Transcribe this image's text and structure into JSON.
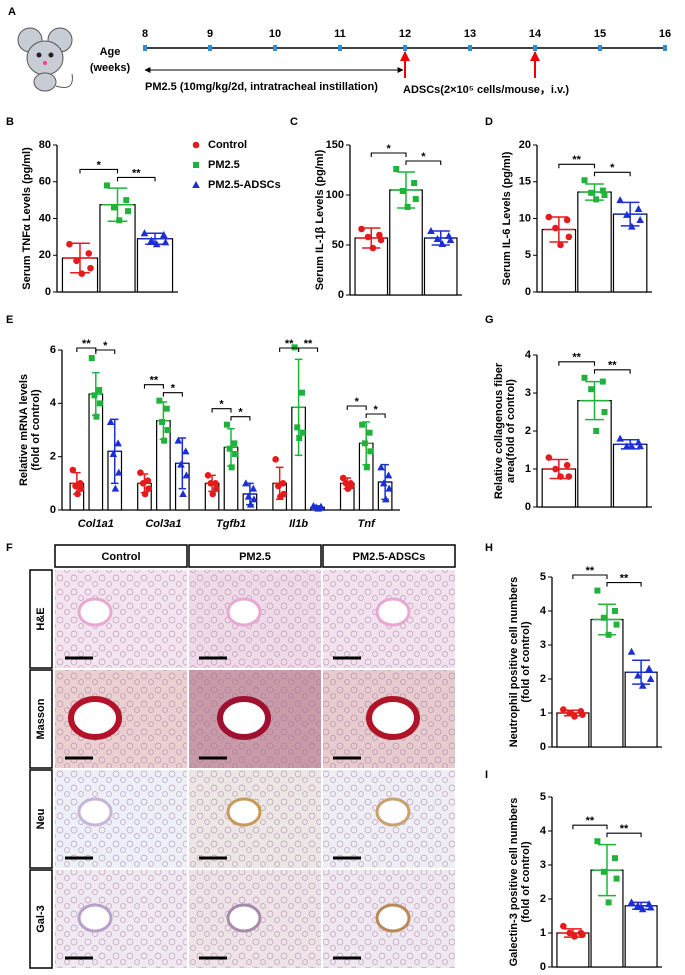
{
  "timeline": {
    "panel": "A",
    "label": [
      "Age",
      "(weeks)"
    ],
    "xlim": [
      8,
      16
    ],
    "xticks": [
      8,
      9,
      10,
      11,
      12,
      13,
      14,
      15,
      16
    ],
    "exposure": {
      "text": "PM2.5 (10mg/kg/2d, intratracheal instillation)",
      "range": [
        8,
        12
      ]
    },
    "treatment": {
      "text": "ADSCs(2×10⁵ cells/mouse，i.v.)",
      "weeks": [
        12,
        14
      ]
    }
  },
  "chart_data": [
    {
      "type": "bar",
      "panel": "B",
      "ylabel": [
        "Serum TNFα Levels (pg/ml)"
      ],
      "ylim": [
        0,
        80
      ],
      "yticks": [
        0,
        20,
        40,
        60,
        80
      ],
      "categories": [
        null
      ],
      "series": [
        {
          "name": "Control",
          "color": "#e41a1c",
          "marker": "circle",
          "values": [
            18.5
          ],
          "errors": [
            8
          ],
          "points": [
            [
              26,
              21,
              17,
              13,
              10
            ]
          ]
        },
        {
          "name": "PM2.5",
          "color": "#1fb33c",
          "marker": "square",
          "values": [
            47.5
          ],
          "errors": [
            9
          ],
          "points": [
            [
              58,
              50,
              46,
              44,
              39
            ]
          ]
        },
        {
          "name": "PM2.5-ADSCs",
          "color": "#1c2fd1",
          "marker": "triangle",
          "values": [
            29
          ],
          "errors": [
            3
          ],
          "points": [
            [
              32,
              31,
              28,
              27,
              26
            ]
          ]
        }
      ],
      "significance": [
        [
          "*",
          "**"
        ]
      ]
    },
    {
      "type": "bar",
      "panel": "C",
      "ylabel": [
        "Serum IL-1β Levels (pg/ml)"
      ],
      "ylim": [
        0,
        150
      ],
      "yticks": [
        0,
        50,
        100,
        150
      ],
      "categories": [
        null
      ],
      "series": [
        {
          "color": "#e41a1c",
          "marker": "circle",
          "values": [
            57
          ],
          "errors": [
            10
          ],
          "points": [
            [
              66,
              60,
              58,
              55,
              47
            ]
          ]
        },
        {
          "color": "#1fb33c",
          "marker": "square",
          "values": [
            105
          ],
          "errors": [
            18
          ],
          "points": [
            [
              126,
              112,
              104,
              96,
              88
            ]
          ]
        },
        {
          "color": "#1c2fd1",
          "marker": "triangle",
          "values": [
            57
          ],
          "errors": [
            7
          ],
          "points": [
            [
              64,
              59,
              56,
              55,
              51
            ]
          ]
        }
      ],
      "significance": [
        [
          "*",
          "*"
        ]
      ]
    },
    {
      "type": "bar",
      "panel": "D",
      "ylabel": [
        "Serum IL-6 Levels (pg/ml)"
      ],
      "ylim": [
        0,
        20
      ],
      "yticks": [
        0,
        5,
        10,
        15,
        20
      ],
      "categories": [
        null
      ],
      "series": [
        {
          "color": "#e41a1c",
          "marker": "circle",
          "values": [
            8.5
          ],
          "errors": [
            1.7
          ],
          "points": [
            [
              10.2,
              9.8,
              8.7,
              7.5,
              6.4
            ]
          ]
        },
        {
          "color": "#1fb33c",
          "marker": "square",
          "values": [
            13.6
          ],
          "errors": [
            1.1
          ],
          "points": [
            [
              15.2,
              13.8,
              13.5,
              13.2,
              12.6
            ]
          ]
        },
        {
          "color": "#1c2fd1",
          "marker": "triangle",
          "values": [
            10.6
          ],
          "errors": [
            1.6
          ],
          "points": [
            [
              12.5,
              11.3,
              10.5,
              9.8,
              8.9
            ]
          ]
        }
      ],
      "significance": [
        [
          "**",
          "*"
        ]
      ]
    },
    {
      "type": "bar",
      "panel": "E",
      "ylabel": [
        "Relative mRNA levels",
        "(fold of control)"
      ],
      "ylim": [
        0,
        6
      ],
      "yticks": [
        0,
        2,
        4,
        6
      ],
      "categories": [
        "Col1a1",
        "Col3a1",
        "Tgfb1",
        "Il1b",
        "Tnf"
      ],
      "series": [
        {
          "color": "#e41a1c",
          "marker": "circle",
          "values": [
            1,
            1,
            1,
            1,
            1
          ],
          "errors": [
            0.4,
            0.35,
            0.3,
            0.6,
            0.2
          ],
          "points": [
            [
              1.5,
              1.0,
              0.9,
              0.8,
              0.6
            ],
            [
              1.4,
              1.1,
              1.0,
              0.8,
              0.6
            ],
            [
              1.3,
              1.0,
              1.0,
              0.8,
              0.6
            ],
            [
              1.9,
              1.0,
              0.9,
              0.6,
              0.5
            ],
            [
              1.2,
              1.0,
              1.0,
              0.9,
              0.8
            ]
          ]
        },
        {
          "color": "#1fb33c",
          "marker": "square",
          "values": [
            4.35,
            3.35,
            2.35,
            3.85,
            2.5
          ],
          "errors": [
            0.8,
            0.7,
            0.7,
            1.8,
            0.8
          ],
          "points": [
            [
              5.7,
              4.5,
              4.3,
              4.0,
              3.5
            ],
            [
              4.1,
              3.8,
              3.3,
              3.0,
              2.6
            ],
            [
              3.2,
              2.5,
              2.3,
              2.1,
              1.6
            ],
            [
              6.1,
              4.4,
              3.1,
              2.9,
              2.7
            ],
            [
              3.2,
              2.9,
              2.5,
              2.2,
              1.6
            ]
          ]
        },
        {
          "color": "#1c2fd1",
          "marker": "triangle",
          "values": [
            2.2,
            1.75,
            0.6,
            0.1,
            1.05
          ],
          "errors": [
            1.2,
            0.95,
            0.4,
            0.05,
            0.65
          ],
          "points": [
            [
              3.3,
              2.5,
              2.1,
              1.4,
              0.8
            ],
            [
              2.6,
              2.2,
              1.7,
              1.3,
              0.6
            ],
            [
              1.0,
              0.8,
              0.5,
              0.4,
              0.2
            ],
            [
              0.15,
              0.12,
              0.1,
              0.08,
              0.05
            ],
            [
              1.6,
              1.3,
              1.0,
              0.8,
              0.4
            ]
          ]
        }
      ],
      "significance": [
        [
          "**",
          "*"
        ],
        [
          "**",
          "*"
        ],
        [
          "*",
          "*"
        ],
        [
          "**",
          "**"
        ],
        [
          "*",
          "*"
        ]
      ]
    },
    {
      "type": "bar",
      "panel": "G",
      "ylabel": [
        "Relative collagenous fiber",
        "area(fold of control)"
      ],
      "ylim": [
        0,
        4
      ],
      "yticks": [
        0,
        1,
        2,
        3,
        4
      ],
      "categories": [
        null
      ],
      "series": [
        {
          "color": "#e41a1c",
          "marker": "circle",
          "values": [
            1.0
          ],
          "errors": [
            0.25
          ],
          "points": [
            [
              1.3,
              1.1,
              1.0,
              0.8,
              0.8
            ]
          ]
        },
        {
          "color": "#1fb33c",
          "marker": "square",
          "values": [
            2.8
          ],
          "errors": [
            0.5
          ],
          "points": [
            [
              3.4,
              3.3,
              3.1,
              2.5,
              2.0
            ]
          ]
        },
        {
          "color": "#1c2fd1",
          "marker": "triangle",
          "values": [
            1.65
          ],
          "errors": [
            0.12
          ],
          "points": [
            [
              1.8,
              1.7,
              1.6,
              1.6,
              1.6
            ]
          ]
        }
      ],
      "significance": [
        [
          "**",
          "**"
        ]
      ]
    },
    {
      "type": "bar",
      "panel": "H",
      "ylabel": [
        "Neutrophil positive cell numbers",
        "(fold of control)"
      ],
      "ylim": [
        0,
        5
      ],
      "yticks": [
        0,
        1,
        2,
        3,
        4,
        5
      ],
      "categories": [
        null
      ],
      "series": [
        {
          "color": "#e41a1c",
          "marker": "circle",
          "values": [
            1.0
          ],
          "errors": [
            0.08
          ],
          "points": [
            [
              1.1,
              1.05,
              1.0,
              0.95,
              0.9
            ]
          ]
        },
        {
          "color": "#1fb33c",
          "marker": "square",
          "values": [
            3.75
          ],
          "errors": [
            0.45
          ],
          "points": [
            [
              4.6,
              4.0,
              3.8,
              3.6,
              3.3
            ]
          ]
        },
        {
          "color": "#1c2fd1",
          "marker": "triangle",
          "values": [
            2.2
          ],
          "errors": [
            0.35
          ],
          "points": [
            [
              2.8,
              2.3,
              2.1,
              2.0,
              1.8
            ]
          ]
        }
      ],
      "significance": [
        [
          "**",
          "**"
        ]
      ]
    },
    {
      "type": "bar",
      "panel": "I",
      "ylabel": [
        "Galectin-3 positive cell numbers",
        "(fold of control)"
      ],
      "ylim": [
        0,
        5
      ],
      "yticks": [
        0,
        1,
        2,
        3,
        4,
        5
      ],
      "categories": [
        null
      ],
      "series": [
        {
          "color": "#e41a1c",
          "marker": "circle",
          "values": [
            1.0
          ],
          "errors": [
            0.12
          ],
          "points": [
            [
              1.2,
              1.0,
              1.0,
              0.95,
              0.9
            ]
          ]
        },
        {
          "color": "#1fb33c",
          "marker": "square",
          "values": [
            2.85
          ],
          "errors": [
            0.75
          ],
          "points": [
            [
              3.7,
              3.2,
              2.8,
              2.6,
              1.9
            ]
          ]
        },
        {
          "color": "#1c2fd1",
          "marker": "triangle",
          "values": [
            1.8
          ],
          "errors": [
            0.1
          ],
          "points": [
            [
              1.9,
              1.85,
              1.8,
              1.75,
              1.7
            ]
          ]
        }
      ],
      "significance": [
        [
          "**",
          "**"
        ]
      ]
    }
  ],
  "micrographs": {
    "panel": "F",
    "columns": [
      "Control",
      "PM2.5",
      "PM2.5-ADSCs"
    ],
    "rows": [
      "H&E",
      "Masson",
      "Neu",
      "Gal-3"
    ]
  }
}
